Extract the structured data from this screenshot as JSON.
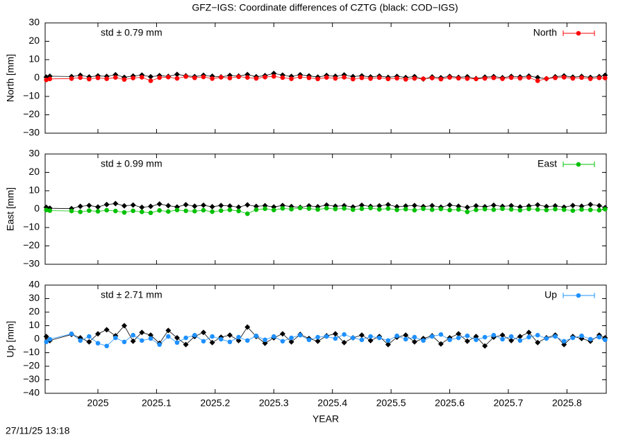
{
  "title": "GFZ−IGS: Coordinate differences of CZTG (black: COD−IGS)",
  "footer": "27/11/25 13:18",
  "chart_data": [
    {
      "type": "line",
      "ylabel": "North [mm]",
      "annotation": "std ± 0.79 mm",
      "legend": "top-right",
      "xlim": [
        2024.91,
        2025.867
      ],
      "ylim": [
        -30,
        30
      ],
      "yticks": [
        {
          "value": -30,
          "label": "−30"
        },
        {
          "value": -20,
          "label": "−20"
        },
        {
          "value": -10,
          "label": "−10"
        },
        0,
        10,
        20,
        30
      ],
      "x": [
        2024.912,
        2024.918,
        2024.955,
        2024.97,
        2024.985,
        2025,
        2025.015,
        2025.03,
        2025.045,
        2025.06,
        2025.075,
        2025.09,
        2025.105,
        2025.12,
        2025.135,
        2025.15,
        2025.165,
        2025.18,
        2025.195,
        2025.21,
        2025.225,
        2025.24,
        2025.255,
        2025.27,
        2025.285,
        2025.3,
        2025.315,
        2025.33,
        2025.345,
        2025.36,
        2025.375,
        2025.39,
        2025.405,
        2025.42,
        2025.435,
        2025.45,
        2025.465,
        2025.48,
        2025.495,
        2025.51,
        2025.525,
        2025.54,
        2025.555,
        2025.57,
        2025.585,
        2025.6,
        2025.615,
        2025.63,
        2025.645,
        2025.66,
        2025.675,
        2025.69,
        2025.705,
        2025.72,
        2025.735,
        2025.75,
        2025.765,
        2025.78,
        2025.795,
        2025.81,
        2025.825,
        2025.84,
        2025.855,
        2025.865
      ],
      "series": [
        {
          "color": "#000000",
          "marker": "diamond",
          "values": [
            0.5,
            1.0,
            0.8,
            1.5,
            0.6,
            1.2,
            0.9,
            1.8,
            0.4,
            1.1,
            1.6,
            0.7,
            1.3,
            0.9,
            2.0,
            1.2,
            0.8,
            1.5,
            1.0,
            0.6,
            1.4,
            1.1,
            1.9,
            0.7,
            1.3,
            2.5,
            1.6,
            0.9,
            1.8,
            1.2,
            0.5,
            1.4,
            1.0,
            1.7,
            0.8,
            1.2,
            0.6,
            1.1,
            0.4,
            0.9,
            0.3,
            0.8,
            -0.5,
            0.6,
            0.2,
            0.9,
            0.4,
            0.7,
            -0.3,
            0.5,
            0.8,
            0.2,
            0.9,
            0.6,
            1.1,
            0.3,
            -0.4,
            0.7,
            1.2,
            0.5,
            0.9,
            0.4,
            0.8,
            1.5
          ]
        },
        {
          "name": "North",
          "color": "#ff0000",
          "marker": "circle",
          "values": [
            -1.0,
            -0.5,
            -0.3,
            0.2,
            -0.6,
            0.1,
            -0.4,
            0.3,
            -0.8,
            0.0,
            0.4,
            -1.5,
            0.2,
            0.5,
            -0.2,
            0.8,
            0.1,
            0.6,
            -0.3,
            0.4,
            0.0,
            0.7,
            0.3,
            -0.2,
            0.5,
            0.9,
            0.2,
            -0.4,
            0.6,
            0.1,
            -0.5,
            0.3,
            -0.2,
            0.4,
            -0.6,
            0.1,
            -0.3,
            0.2,
            -0.5,
            -0.1,
            -0.7,
            -0.2,
            -0.4,
            0.0,
            -0.6,
            0.3,
            -0.1,
            -0.3,
            -0.5,
            -0.2,
            0.1,
            -0.4,
            0.2,
            -0.1,
            0.3,
            -1.5,
            -0.3,
            0.1,
            0.4,
            -0.2,
            0.2,
            -0.4,
            0.1,
            0.0
          ]
        }
      ]
    },
    {
      "type": "line",
      "ylabel": "East [mm]",
      "annotation": "std ± 0.99 mm",
      "legend": "top-right",
      "xlim": [
        2024.91,
        2025.867
      ],
      "ylim": [
        -30,
        30
      ],
      "yticks": [
        {
          "value": -30,
          "label": "−30"
        },
        {
          "value": -20,
          "label": "−20"
        },
        {
          "value": -10,
          "label": "−10"
        },
        0,
        10,
        20,
        30
      ],
      "x": [
        2024.912,
        2024.918,
        2024.955,
        2024.97,
        2024.985,
        2025,
        2025.015,
        2025.03,
        2025.045,
        2025.06,
        2025.075,
        2025.09,
        2025.105,
        2025.12,
        2025.135,
        2025.15,
        2025.165,
        2025.18,
        2025.195,
        2025.21,
        2025.225,
        2025.24,
        2025.255,
        2025.27,
        2025.285,
        2025.3,
        2025.315,
        2025.33,
        2025.345,
        2025.36,
        2025.375,
        2025.39,
        2025.405,
        2025.42,
        2025.435,
        2025.45,
        2025.465,
        2025.48,
        2025.495,
        2025.51,
        2025.525,
        2025.54,
        2025.555,
        2025.57,
        2025.585,
        2025.6,
        2025.615,
        2025.63,
        2025.645,
        2025.66,
        2025.675,
        2025.69,
        2025.705,
        2025.72,
        2025.735,
        2025.75,
        2025.765,
        2025.78,
        2025.795,
        2025.81,
        2025.825,
        2025.84,
        2025.855,
        2025.865
      ],
      "series": [
        {
          "color": "#000000",
          "marker": "diamond",
          "values": [
            1.0,
            0.5,
            0.3,
            1.5,
            2.0,
            1.2,
            2.5,
            3.0,
            1.8,
            2.2,
            1.0,
            1.5,
            2.8,
            1.9,
            1.2,
            2.4,
            1.6,
            2.1,
            1.3,
            2.0,
            1.7,
            1.1,
            2.3,
            1.5,
            1.9,
            1.2,
            2.0,
            1.4,
            1.0,
            1.8,
            1.3,
            2.2,
            1.6,
            1.9,
            1.2,
            2.1,
            1.5,
            1.8,
            2.4,
            1.3,
            1.7,
            2.0,
            1.4,
            1.9,
            1.1,
            2.2,
            1.6,
            1.0,
            1.8,
            1.3,
            2.1,
            1.5,
            1.9,
            1.2,
            1.7,
            2.3,
            1.4,
            1.8,
            1.1,
            2.0,
            1.6,
            2.5,
            1.9,
            0.8
          ]
        },
        {
          "name": "East",
          "color": "#00c000",
          "marker": "circle",
          "values": [
            -0.5,
            -0.8,
            -1.0,
            -1.5,
            -0.8,
            -1.2,
            -0.6,
            -1.0,
            -1.8,
            -0.9,
            -1.5,
            -2.0,
            -0.7,
            -1.3,
            -0.5,
            -0.9,
            -1.1,
            -0.6,
            -1.4,
            -0.8,
            -0.4,
            -1.0,
            -2.5,
            -0.3,
            0.2,
            -0.5,
            0.4,
            0.0,
            0.6,
            0.3,
            -0.2,
            0.5,
            0.1,
            0.4,
            -0.3,
            0.2,
            0.6,
            -0.1,
            0.3,
            -0.4,
            0.0,
            -0.6,
            0.2,
            -0.3,
            0.1,
            -0.5,
            -0.2,
            -1.5,
            -0.4,
            0.0,
            -0.3,
            0.2,
            -0.1,
            -0.6,
            0.1,
            -0.2,
            -0.5,
            0.0,
            -0.3,
            -0.8,
            -0.2,
            -0.4,
            -0.6,
            0.0
          ]
        }
      ]
    },
    {
      "type": "line",
      "ylabel": "Up [mm]",
      "annotation": "std ± 2.71 mm",
      "legend": "top-right",
      "xlabel": "YEAR",
      "xlim": [
        2024.91,
        2025.867
      ],
      "xticks": [
        2025,
        2025.1,
        2025.2,
        2025.3,
        2025.4,
        2025.5,
        2025.6,
        2025.7,
        2025.8
      ],
      "ylim": [
        -40,
        40
      ],
      "yticks": [
        {
          "value": -40,
          "label": "−40"
        },
        {
          "value": -30,
          "label": "−30"
        },
        {
          "value": -20,
          "label": "−20"
        },
        {
          "value": -10,
          "label": "−10"
        },
        0,
        10,
        20,
        30,
        40
      ],
      "x": [
        2024.912,
        2024.918,
        2024.955,
        2024.97,
        2024.985,
        2025,
        2025.015,
        2025.03,
        2025.045,
        2025.06,
        2025.075,
        2025.09,
        2025.105,
        2025.12,
        2025.135,
        2025.15,
        2025.165,
        2025.18,
        2025.195,
        2025.21,
        2025.225,
        2025.24,
        2025.255,
        2025.27,
        2025.285,
        2025.3,
        2025.315,
        2025.33,
        2025.345,
        2025.36,
        2025.375,
        2025.39,
        2025.405,
        2025.42,
        2025.435,
        2025.45,
        2025.465,
        2025.48,
        2025.495,
        2025.51,
        2025.525,
        2025.54,
        2025.555,
        2025.57,
        2025.585,
        2025.6,
        2025.615,
        2025.63,
        2025.645,
        2025.66,
        2025.675,
        2025.69,
        2025.705,
        2025.72,
        2025.735,
        2025.75,
        2025.765,
        2025.78,
        2025.795,
        2025.81,
        2025.825,
        2025.84,
        2025.855,
        2025.865
      ],
      "series": [
        {
          "color": "#000000",
          "marker": "diamond",
          "values": [
            2.0,
            -1.0,
            3.5,
            1.0,
            -2.0,
            4.0,
            7.0,
            2.5,
            10.0,
            -1.5,
            5.0,
            3.0,
            -3.0,
            6.5,
            1.0,
            -4.0,
            2.0,
            5.0,
            -2.5,
            1.5,
            3.0,
            -1.0,
            9.0,
            2.0,
            -3.0,
            1.0,
            4.0,
            -2.0,
            3.5,
            0.5,
            -1.5,
            2.5,
            4.0,
            -2.5,
            1.0,
            3.0,
            -1.0,
            2.0,
            -4.0,
            1.5,
            3.0,
            -2.0,
            0.5,
            2.5,
            -3.5,
            1.0,
            4.0,
            -1.5,
            2.0,
            -5.0,
            1.5,
            3.0,
            -1.0,
            2.0,
            5.0,
            -2.5,
            1.0,
            3.0,
            -4.0,
            2.0,
            0.5,
            -1.5,
            3.0,
            1.0
          ]
        },
        {
          "name": "Up",
          "color": "#1e90ff",
          "marker": "circle",
          "values": [
            -2.0,
            0.0,
            4.0,
            -1.0,
            2.0,
            -3.0,
            -5.0,
            1.0,
            -2.0,
            3.0,
            -1.0,
            0.5,
            -4.0,
            2.0,
            -2.5,
            1.0,
            3.0,
            -1.5,
            2.0,
            0.0,
            -2.0,
            1.5,
            -1.0,
            2.5,
            -0.5,
            2.0,
            -1.5,
            1.0,
            3.0,
            -0.5,
            1.5,
            2.0,
            0.5,
            3.5,
            1.0,
            -0.5,
            2.0,
            1.0,
            -1.0,
            2.5,
            0.0,
            1.5,
            -1.0,
            2.0,
            3.5,
            -0.5,
            1.0,
            2.5,
            -0.5,
            1.5,
            3.0,
            0.0,
            2.0,
            -1.0,
            1.5,
            3.0,
            0.5,
            2.0,
            -1.5,
            1.0,
            2.5,
            0.0,
            1.5,
            -0.5
          ]
        }
      ]
    }
  ]
}
